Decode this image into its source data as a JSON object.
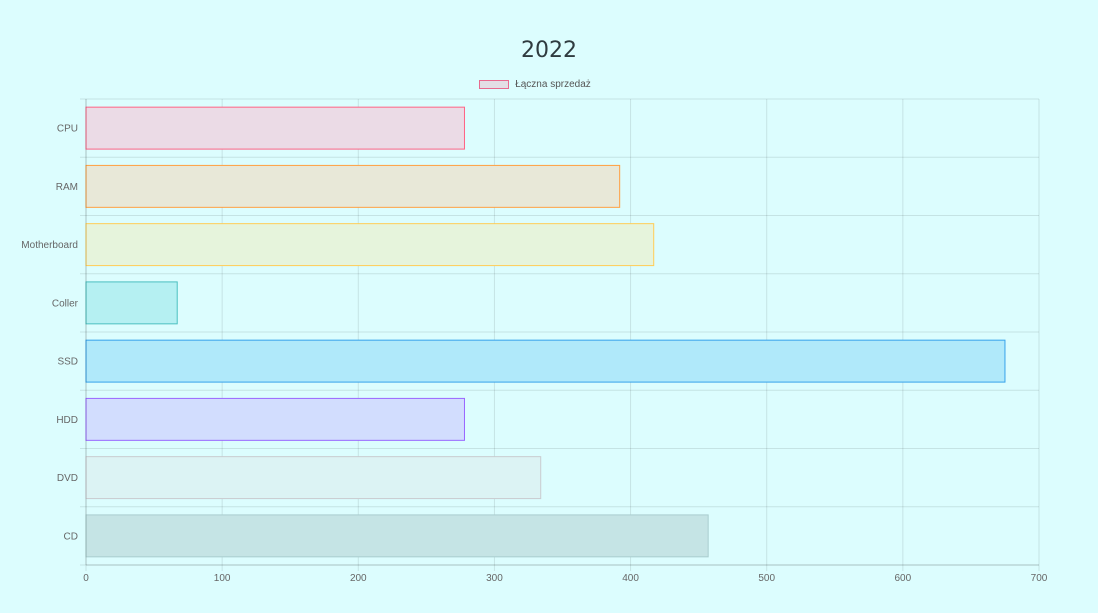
{
  "chart_data": {
    "type": "bar",
    "orientation": "horizontal",
    "title": "2022",
    "categories": [
      "CPU",
      "RAM",
      "Motherboard",
      "Coller",
      "SSD",
      "HDD",
      "DVD",
      "CD"
    ],
    "series": [
      {
        "name": "Łączna sprzedaż",
        "values": [
          278,
          392,
          417,
          67,
          675,
          278,
          334,
          457
        ]
      }
    ],
    "xlim": [
      0,
      700
    ],
    "xticks": [
      "0",
      "100",
      "200",
      "300",
      "400",
      "500",
      "600",
      "700"
    ],
    "grid": true,
    "legend_position": "top",
    "bar_colors": {
      "fill": [
        "#ebdbe6",
        "#e8e8d8",
        "#e6f4dc",
        "#b5f0f2",
        "#b0e9fa",
        "#d2ddfe",
        "#dcf3f4",
        "#c5e4e5"
      ],
      "stroke": [
        "#ff6384",
        "#ff9f40",
        "#ffcd56",
        "#4bc0c0",
        "#36a2eb",
        "#9966ff",
        "#c9cbcf",
        "#a9cdce"
      ]
    }
  }
}
